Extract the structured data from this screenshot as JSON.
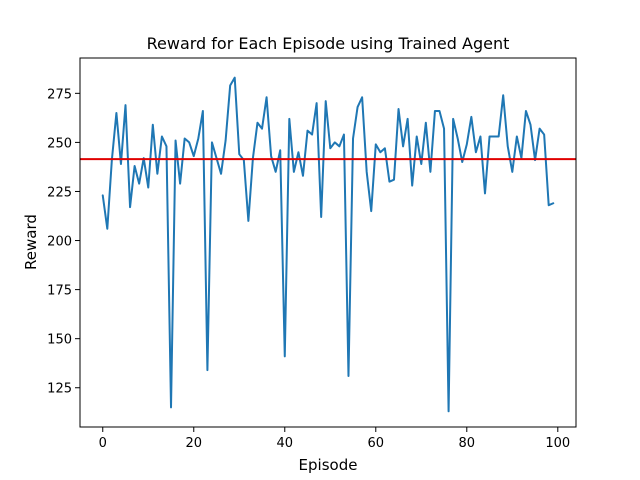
{
  "chart_data": {
    "type": "line",
    "title": "Reward for Each Episode using Trained Agent",
    "xlabel": "Episode",
    "ylabel": "Reward",
    "xlim": [
      -5,
      104
    ],
    "ylim": [
      105,
      293
    ],
    "xticks": [
      0,
      20,
      40,
      60,
      80,
      100
    ],
    "yticks": [
      125,
      150,
      175,
      200,
      225,
      250,
      275
    ],
    "grid": false,
    "series": [
      {
        "name": "reward",
        "color": "#1f77b4",
        "x": [
          0,
          1,
          2,
          3,
          4,
          5,
          6,
          7,
          8,
          9,
          10,
          11,
          12,
          13,
          14,
          15,
          16,
          17,
          18,
          19,
          20,
          21,
          22,
          23,
          24,
          25,
          26,
          27,
          28,
          29,
          30,
          31,
          32,
          33,
          34,
          35,
          36,
          37,
          38,
          39,
          40,
          41,
          42,
          43,
          44,
          45,
          46,
          47,
          48,
          49,
          50,
          51,
          52,
          53,
          54,
          55,
          56,
          57,
          58,
          59,
          60,
          61,
          62,
          63,
          64,
          65,
          66,
          67,
          68,
          69,
          70,
          71,
          72,
          73,
          74,
          75,
          76,
          77,
          78,
          79,
          80,
          81,
          82,
          83,
          84,
          85,
          86,
          87,
          88,
          89,
          90,
          91,
          92,
          93,
          94,
          95,
          96,
          97,
          98,
          99
        ],
        "values": [
          223,
          206,
          241,
          265,
          239,
          269,
          217,
          238,
          229,
          242,
          227,
          259,
          234,
          253,
          248,
          115,
          251,
          229,
          252,
          250,
          243,
          252,
          266,
          134,
          250,
          242,
          234,
          251,
          279,
          283,
          244,
          241,
          210,
          242,
          260,
          257,
          273,
          243,
          235,
          246,
          141,
          262,
          235,
          245,
          233,
          256,
          254,
          270,
          212,
          271,
          247,
          250,
          248,
          254,
          131,
          252,
          268,
          273,
          235,
          215,
          249,
          245,
          247,
          230,
          231,
          267,
          248,
          262,
          228,
          253,
          239,
          260,
          235,
          266,
          266,
          257,
          113,
          262,
          252,
          240,
          249,
          263,
          245,
          253,
          224,
          253,
          253,
          253,
          274,
          248,
          235,
          253,
          242,
          266,
          259,
          241,
          257,
          254,
          218,
          219
        ]
      }
    ],
    "reference_line": {
      "y": 241.5,
      "color": "#e00000",
      "orientation": "horizontal"
    }
  }
}
